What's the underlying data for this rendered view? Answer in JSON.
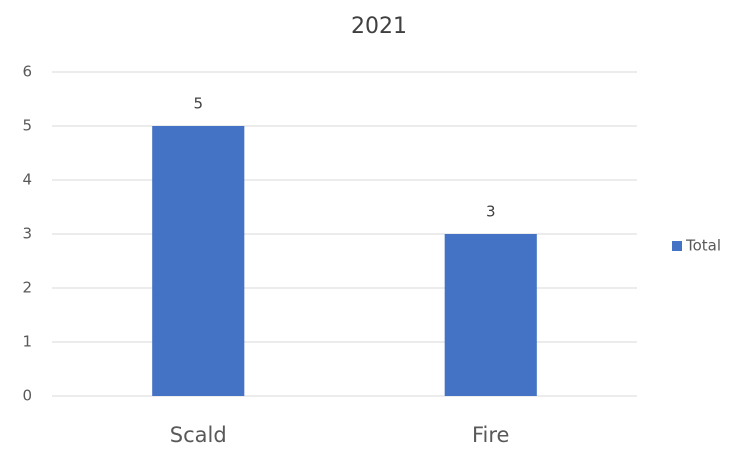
{
  "chart_data": {
    "type": "bar",
    "title": "2021",
    "categories": [
      "Scald",
      "Fire"
    ],
    "series": [
      {
        "name": "Total",
        "color": "#4472c4",
        "values": [
          5,
          3
        ]
      }
    ],
    "ylim": [
      0,
      6
    ],
    "yticks": [
      0,
      1,
      2,
      3,
      4,
      5,
      6
    ],
    "grid": true,
    "legend": "right"
  }
}
